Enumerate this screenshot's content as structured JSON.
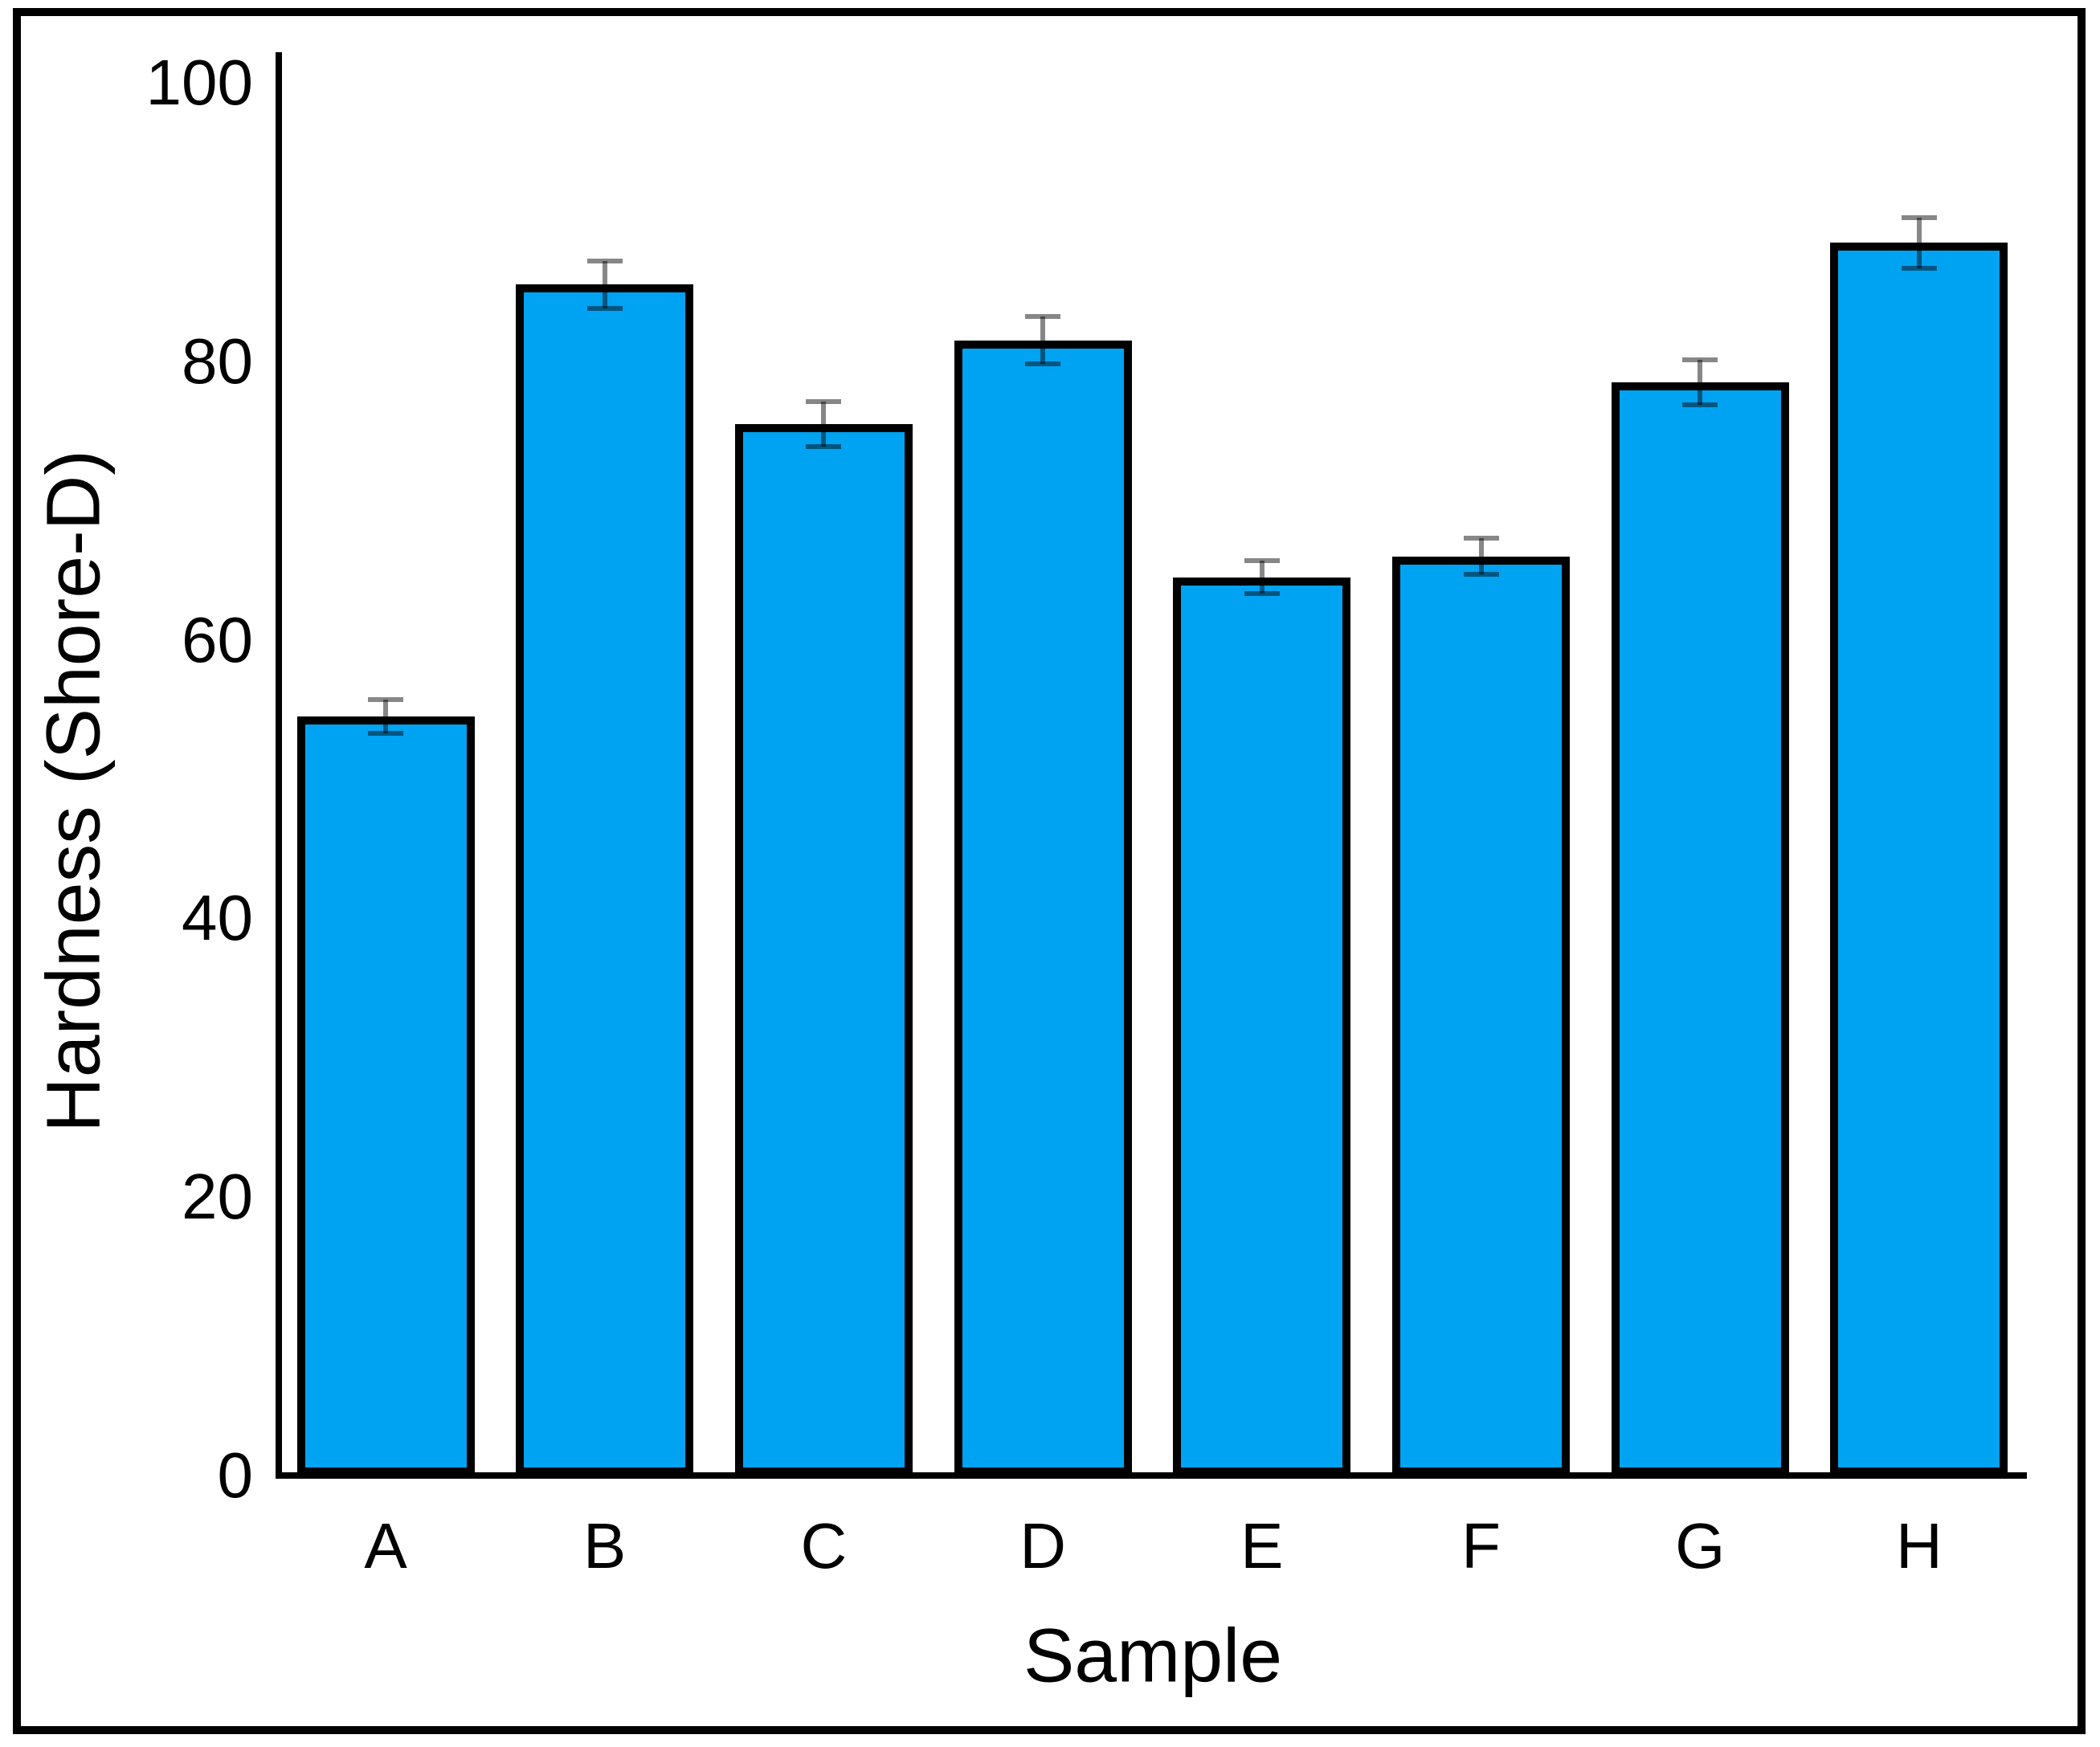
{
  "chart_data": {
    "type": "bar",
    "title": "",
    "xlabel": "Sample",
    "ylabel": "Hardness (Shore-D)",
    "categories": [
      "A",
      "B",
      "C",
      "D",
      "E",
      "F",
      "G",
      "H"
    ],
    "values": [
      54.5,
      85.5,
      75.5,
      81.5,
      64.5,
      66.0,
      78.5,
      88.5
    ],
    "error_bars": [
      1.2,
      1.7,
      1.6,
      1.7,
      1.2,
      1.3,
      1.6,
      1.8
    ],
    "ylim": [
      0,
      100
    ],
    "yticks": [
      0,
      20,
      40,
      60,
      80,
      100
    ],
    "grid": false,
    "legend": false,
    "error_caps": true,
    "colors": {
      "bar_fill": "#00A3F2",
      "bar_border": "#000000",
      "error_bar": "rgba(0,0,0,0.47)",
      "axis": "#000000",
      "text": "#000000",
      "frame": "#000000",
      "background": "#FFFFFF"
    }
  }
}
